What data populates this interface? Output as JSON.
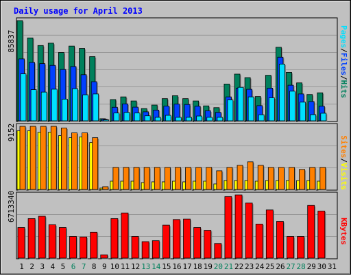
{
  "chart_data": [
    {
      "type": "bar",
      "title": "Daily usage for April 2013",
      "series": [
        {
          "name": "Hits",
          "values": [
            85837,
            71000,
            64500,
            66500,
            58500,
            64000,
            62000,
            55000,
            1800,
            18200,
            20500,
            17000,
            10500,
            13500,
            19000,
            21500,
            19000,
            17000,
            12800,
            11300,
            31500,
            40000,
            37000,
            20800,
            39000,
            63000,
            41500,
            32500,
            22500,
            24000,
            0
          ]
        },
        {
          "name": "Files",
          "values": [
            53000,
            50000,
            49000,
            47500,
            44000,
            46500,
            39500,
            33500,
            1300,
            11600,
            14500,
            11700,
            7700,
            9200,
            12600,
            14300,
            14000,
            12500,
            8600,
            7200,
            20500,
            28000,
            27000,
            13000,
            28000,
            54500,
            30500,
            23000,
            16500,
            12500,
            0
          ]
        },
        {
          "name": "Pages",
          "values": [
            40200,
            26700,
            24600,
            27100,
            18600,
            27500,
            22300,
            23000,
            800,
            6700,
            7200,
            6700,
            4300,
            3000,
            4700,
            3000,
            3000,
            4100,
            3000,
            3000,
            17900,
            28700,
            20500,
            5200,
            19700,
            48600,
            25400,
            16000,
            5300,
            6500,
            0
          ]
        }
      ],
      "categories": [
        "1",
        "2",
        "3",
        "4",
        "5",
        "6",
        "7",
        "8",
        "9",
        "10",
        "11",
        "12",
        "13",
        "14",
        "15",
        "16",
        "17",
        "18",
        "19",
        "20",
        "21",
        "22",
        "23",
        "24",
        "25",
        "26",
        "27",
        "28",
        "29",
        "30",
        "31"
      ],
      "weekend_days": [
        "6",
        "7",
        "13",
        "14",
        "20",
        "21",
        "27",
        "28"
      ],
      "ylim": [
        0,
        85837
      ],
      "ytick_label": "85837",
      "colors": {
        "Hits": "#00805c",
        "Files": "#0040ff",
        "Pages": "#00e0ff"
      }
    },
    {
      "type": "bar",
      "series": [
        {
          "name": "Visits",
          "values": [
            8500,
            8500,
            8300,
            8300,
            7800,
            7500,
            7600,
            6800,
            200,
            1200,
            1200,
            1200,
            1000,
            1100,
            1100,
            1200,
            1100,
            1200,
            1200,
            800,
            1300,
            1300,
            1300,
            1200,
            1300,
            1300,
            1300,
            1300,
            1300,
            1200,
            0
          ]
        },
        {
          "name": "Sites",
          "values": [
            9152,
            9152,
            9152,
            9152,
            8900,
            8200,
            8200,
            7500,
            400,
            3200,
            3200,
            3200,
            3200,
            3200,
            3200,
            3200,
            3200,
            3200,
            3200,
            2700,
            3200,
            3500,
            4000,
            3500,
            3200,
            3200,
            3200,
            2900,
            3200,
            3200,
            0
          ]
        }
      ],
      "categories": [
        "1",
        "2",
        "3",
        "4",
        "5",
        "6",
        "7",
        "8",
        "9",
        "10",
        "11",
        "12",
        "13",
        "14",
        "15",
        "16",
        "17",
        "18",
        "19",
        "20",
        "21",
        "22",
        "23",
        "24",
        "25",
        "26",
        "27",
        "28",
        "29",
        "30",
        "31"
      ],
      "ylim": [
        0,
        9152
      ],
      "ytick_label": "9152",
      "colors": {
        "Visits": "#ffff00",
        "Sites": "#ff8000"
      }
    },
    {
      "type": "bar",
      "series": [
        {
          "name": "KBytes",
          "values": [
            3250000,
            4200000,
            4450000,
            3550000,
            3250000,
            2300000,
            2250000,
            2750000,
            350000,
            4200000,
            4800000,
            2300000,
            1750000,
            1850000,
            3500000,
            4100000,
            4150000,
            3250000,
            2950000,
            1550000,
            6540000,
            6713340,
            5850000,
            3620000,
            5120000,
            3900000,
            2300000,
            2300000,
            5600000,
            5000000,
            0
          ]
        }
      ],
      "categories": [
        "1",
        "2",
        "3",
        "4",
        "5",
        "6",
        "7",
        "8",
        "9",
        "10",
        "11",
        "12",
        "13",
        "14",
        "15",
        "16",
        "17",
        "18",
        "19",
        "20",
        "21",
        "22",
        "23",
        "24",
        "25",
        "26",
        "27",
        "28",
        "29",
        "30",
        "31"
      ],
      "ylim": [
        0,
        6713340
      ],
      "ytick_label": "6713340",
      "colors": {
        "KBytes": "#ff0000"
      }
    }
  ],
  "legend_top": {
    "parts": [
      "Pages",
      "/",
      "Files",
      "/",
      "Hits"
    ],
    "colors": [
      "#00e0ff",
      "#000000",
      "#0040ff",
      "#000000",
      "#00805c"
    ]
  },
  "legend_middle": {
    "parts": [
      "Sites",
      "/",
      "Visits"
    ],
    "colors": [
      "#ff8000",
      "#000000",
      "#ffff00"
    ]
  },
  "legend_bottom": {
    "parts": [
      "KBytes"
    ],
    "colors": [
      "#ff0000"
    ]
  },
  "colors": {
    "frame_bg": "#c0c0c0",
    "title": "#0000ff",
    "weekday_label": "#000000",
    "weekend_label": "#00805c"
  }
}
